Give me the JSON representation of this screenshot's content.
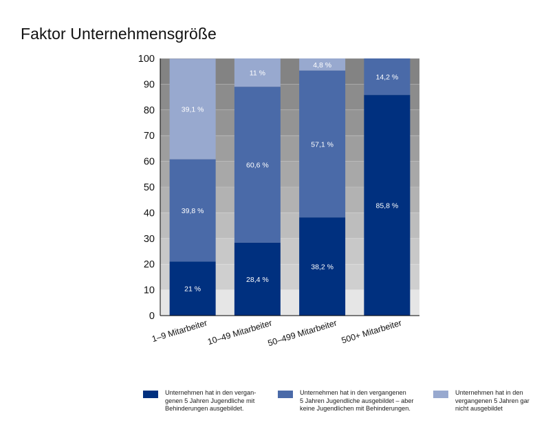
{
  "chart_data": {
    "type": "bar",
    "stacked": true,
    "title": "Faktor Unternehmensgröße",
    "xlabel": "",
    "ylabel": "",
    "ylim": [
      0,
      100
    ],
    "yticks": [
      0,
      10,
      20,
      30,
      40,
      50,
      60,
      70,
      80,
      90,
      100
    ],
    "categories": [
      "1–9 Mitarbeiter",
      "10–49 Mitarbeiter",
      "50–499 Mitarbeiter",
      "500+ Mitarbeiter"
    ],
    "series": [
      {
        "name": "Unternehmen hat in den vergan-\ngenen 5 Jahren Jugendliche mit\nBehinderungen ausgebildet.",
        "color": "#00307f",
        "values": [
          21,
          28.4,
          38.2,
          85.8
        ],
        "labels": [
          "21 %",
          "28,4 %",
          "38,2 %",
          "85,8 %"
        ]
      },
      {
        "name": "Unternehmen hat in den vergangenen\n5 Jahren Jugendliche ausgebildet – aber\nkeine Jugendlichen mit Behinderungen.",
        "color": "#4a6aa8",
        "values": [
          39.8,
          60.6,
          57.1,
          14.2
        ],
        "labels": [
          "39,8 %",
          "60,6 %",
          "57,1 %",
          "14,2 %"
        ]
      },
      {
        "name": "Unternehmen hat in den\nvergangenen 5 Jahren gar\nnicht ausgebildet",
        "color": "#98a9cf",
        "values": [
          39.1,
          11,
          4.8,
          0
        ],
        "labels": [
          "39,1 %",
          "11 %",
          "4,8 %",
          ""
        ]
      }
    ],
    "grid": true,
    "legend_position": "bottom"
  }
}
